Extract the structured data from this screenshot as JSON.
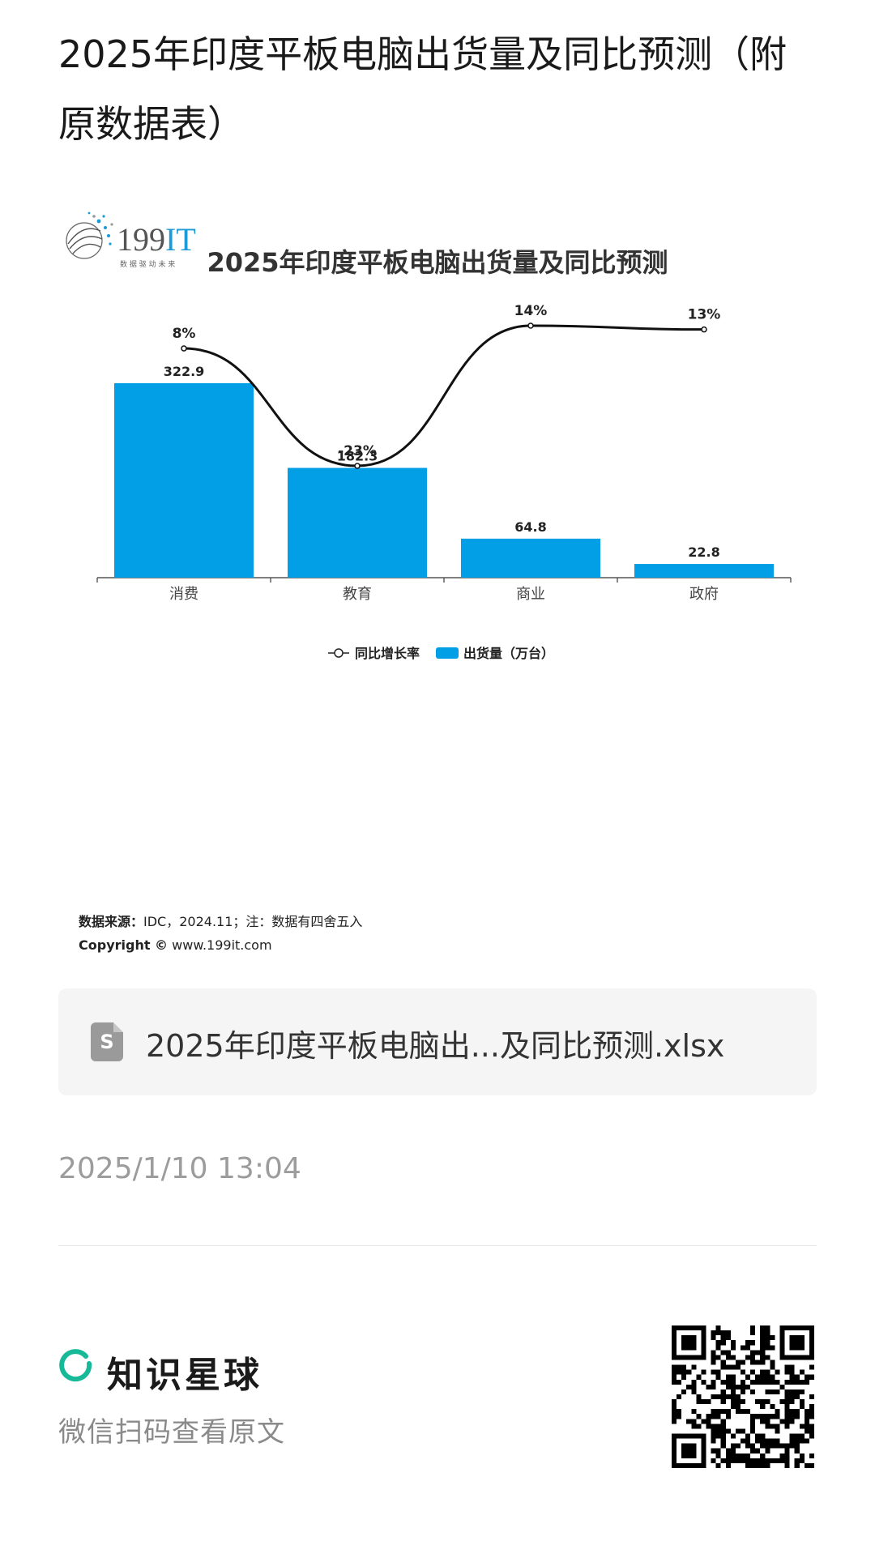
{
  "post": {
    "title": "2025年印度平板电脑出货量及同比预测（附原数据表）"
  },
  "chart_data": {
    "type": "bar",
    "title": "2025年印度平板电脑出货量及同比预测",
    "categories": [
      "消费",
      "教育",
      "商业",
      "政府"
    ],
    "series": [
      {
        "name": "出货量（万台）",
        "type": "bar",
        "values": [
          322.9,
          182.3,
          64.8,
          22.8
        ],
        "labels": [
          "322.9",
          "182.3",
          "64.8",
          "22.8"
        ]
      },
      {
        "name": "同比增长率",
        "type": "line",
        "values": [
          8,
          -23,
          14,
          13
        ],
        "labels": [
          "8%",
          "-23%",
          "14%",
          "13%"
        ]
      }
    ],
    "colors": {
      "bar": "#039fe6",
      "line": "#111111"
    },
    "legend_position": "bottom",
    "grid": false
  },
  "source": {
    "label": "数据来源：",
    "text": "IDC，2024.11；注：数据有四舍五入",
    "copyright_label": "Copyright ©",
    "copyright_site": "www.199it.com"
  },
  "logo": {
    "name": "199IT",
    "text_main": "199",
    "text_accent": "IT",
    "tagline": "数 据 驱 动 未 来",
    "accent_color": "#1a9ad6"
  },
  "attachment": {
    "icon": "spreadsheet-file-icon",
    "icon_letter": "S",
    "filename": "2025年印度平板电脑出...及同比预测.xlsx"
  },
  "meta": {
    "timestamp": "2025/1/10 13:04"
  },
  "footer": {
    "brand": "知识星球",
    "brand_color": "#16b998",
    "subtitle": "微信扫码查看原文",
    "qr": "qr-code"
  }
}
